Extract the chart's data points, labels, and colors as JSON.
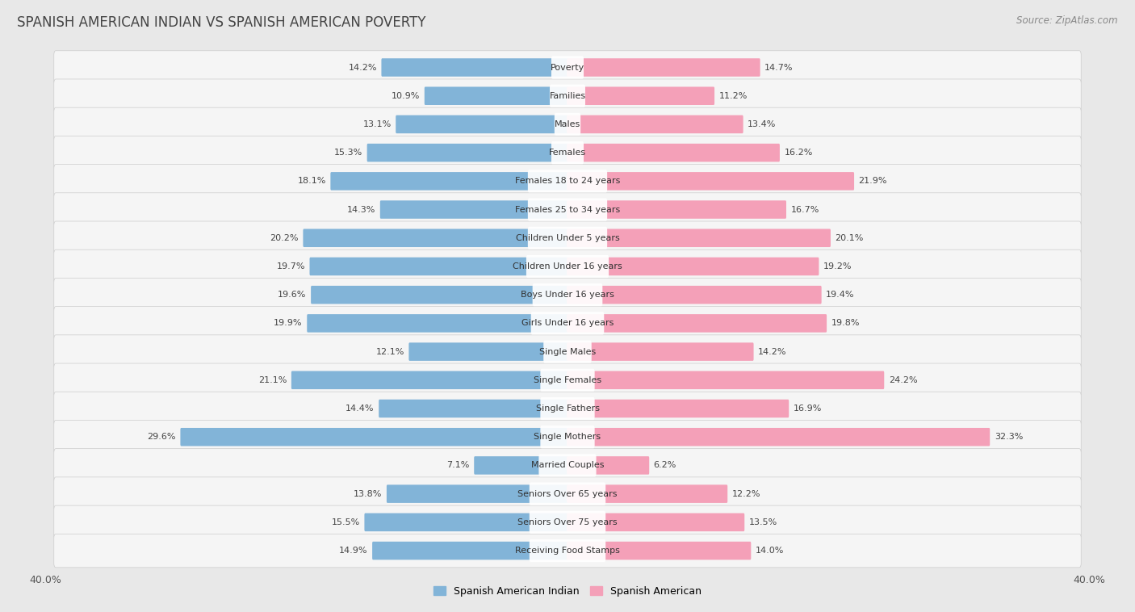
{
  "title": "SPANISH AMERICAN INDIAN VS SPANISH AMERICAN POVERTY",
  "source": "Source: ZipAtlas.com",
  "categories": [
    "Poverty",
    "Families",
    "Males",
    "Females",
    "Females 18 to 24 years",
    "Females 25 to 34 years",
    "Children Under 5 years",
    "Children Under 16 years",
    "Boys Under 16 years",
    "Girls Under 16 years",
    "Single Males",
    "Single Females",
    "Single Fathers",
    "Single Mothers",
    "Married Couples",
    "Seniors Over 65 years",
    "Seniors Over 75 years",
    "Receiving Food Stamps"
  ],
  "left_values": [
    14.2,
    10.9,
    13.1,
    15.3,
    18.1,
    14.3,
    20.2,
    19.7,
    19.6,
    19.9,
    12.1,
    21.1,
    14.4,
    29.6,
    7.1,
    13.8,
    15.5,
    14.9
  ],
  "right_values": [
    14.7,
    11.2,
    13.4,
    16.2,
    21.9,
    16.7,
    20.1,
    19.2,
    19.4,
    19.8,
    14.2,
    24.2,
    16.9,
    32.3,
    6.2,
    12.2,
    13.5,
    14.0
  ],
  "left_color": "#82b4d8",
  "right_color": "#f4a0b8",
  "left_label": "Spanish American Indian",
  "right_label": "Spanish American",
  "xlim": 40.0,
  "background_color": "#e8e8e8",
  "row_bg_color": "#f2f2f2",
  "row_bg_color_alt": "#e0e0e0",
  "title_fontsize": 12,
  "source_fontsize": 8.5,
  "label_fontsize": 8.0,
  "value_fontsize": 8.0,
  "axis_tick_fontsize": 9.0
}
